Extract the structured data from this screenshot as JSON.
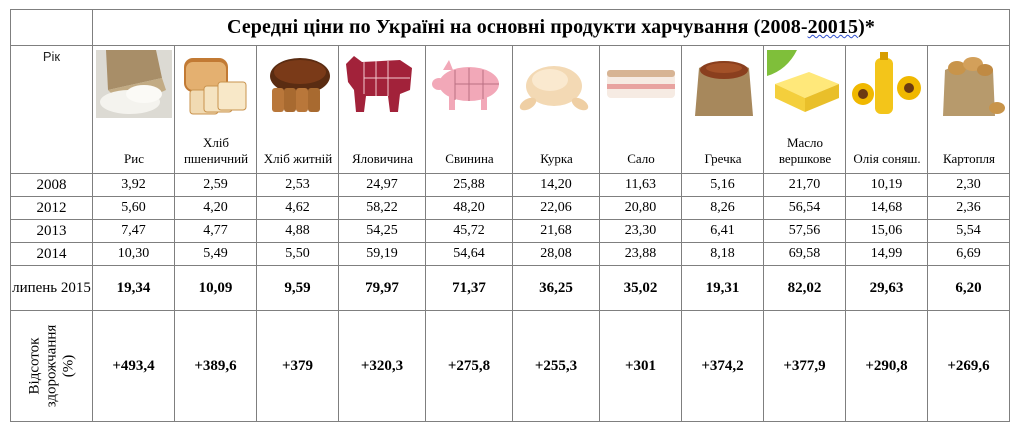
{
  "table": {
    "corner_label": "Рік",
    "title_main": "Середні ціни по Україні на основні продукти харчування (2008-",
    "title_underlined": "20015",
    "title_end": ")*",
    "products": [
      {
        "name": "Рис",
        "icon": "rice-sack-photo"
      },
      {
        "name": "Хліб пшеничний",
        "icon": "wheat-bread-photo"
      },
      {
        "name": "Хліб житній",
        "icon": "rye-bread-photo"
      },
      {
        "name": "Яловичина",
        "icon": "beef-cuts-diagram"
      },
      {
        "name": "Свинина",
        "icon": "pork-cuts-diagram"
      },
      {
        "name": "Курка",
        "icon": "raw-chicken-photo"
      },
      {
        "name": "Сало",
        "icon": "salo-photo"
      },
      {
        "name": "Гречка",
        "icon": "buckwheat-sack-photo"
      },
      {
        "name": "Масло вершкове",
        "icon": "butter-photo"
      },
      {
        "name": "Олія соняш.",
        "icon": "sunflower-oil-photo"
      },
      {
        "name": "Картопля",
        "icon": "potato-sack-photo"
      }
    ],
    "rows": [
      {
        "year": "2008",
        "values": [
          "3,92",
          "2,59",
          "2,53",
          "24,97",
          "25,88",
          "14,20",
          "11,63",
          "5,16",
          "21,70",
          "10,19",
          "2,30"
        ]
      },
      {
        "year": "2012",
        "values": [
          "5,60",
          "4,20",
          "4,62",
          "58,22",
          "48,20",
          "22,06",
          "20,80",
          "8,26",
          "56,54",
          "14,68",
          "2,36"
        ]
      },
      {
        "year": "2013",
        "values": [
          "7,47",
          "4,77",
          "4,88",
          "54,25",
          "45,72",
          "21,68",
          "23,30",
          "6,41",
          "57,56",
          "15,06",
          "5,54"
        ]
      },
      {
        "year": "2014",
        "values": [
          "10,30",
          "5,49",
          "5,50",
          "59,19",
          "54,64",
          "28,08",
          "23,88",
          "8,18",
          "69,58",
          "14,99",
          "6,69"
        ]
      }
    ],
    "july_row": {
      "label": "липень 2015",
      "values": [
        "19,34",
        "10,09",
        "9,59",
        "79,97",
        "71,37",
        "36,25",
        "35,02",
        "19,31",
        "82,02",
        "29,63",
        "6,20"
      ]
    },
    "percent_row": {
      "label": "Відсоток здорожчання (%)",
      "values": [
        "+493,4",
        "+389,6",
        "+379",
        "+320,3",
        "+275,8",
        "+255,3",
        "+301",
        "+374,2",
        "+377,9",
        "+290,8",
        "+269,6"
      ]
    }
  }
}
